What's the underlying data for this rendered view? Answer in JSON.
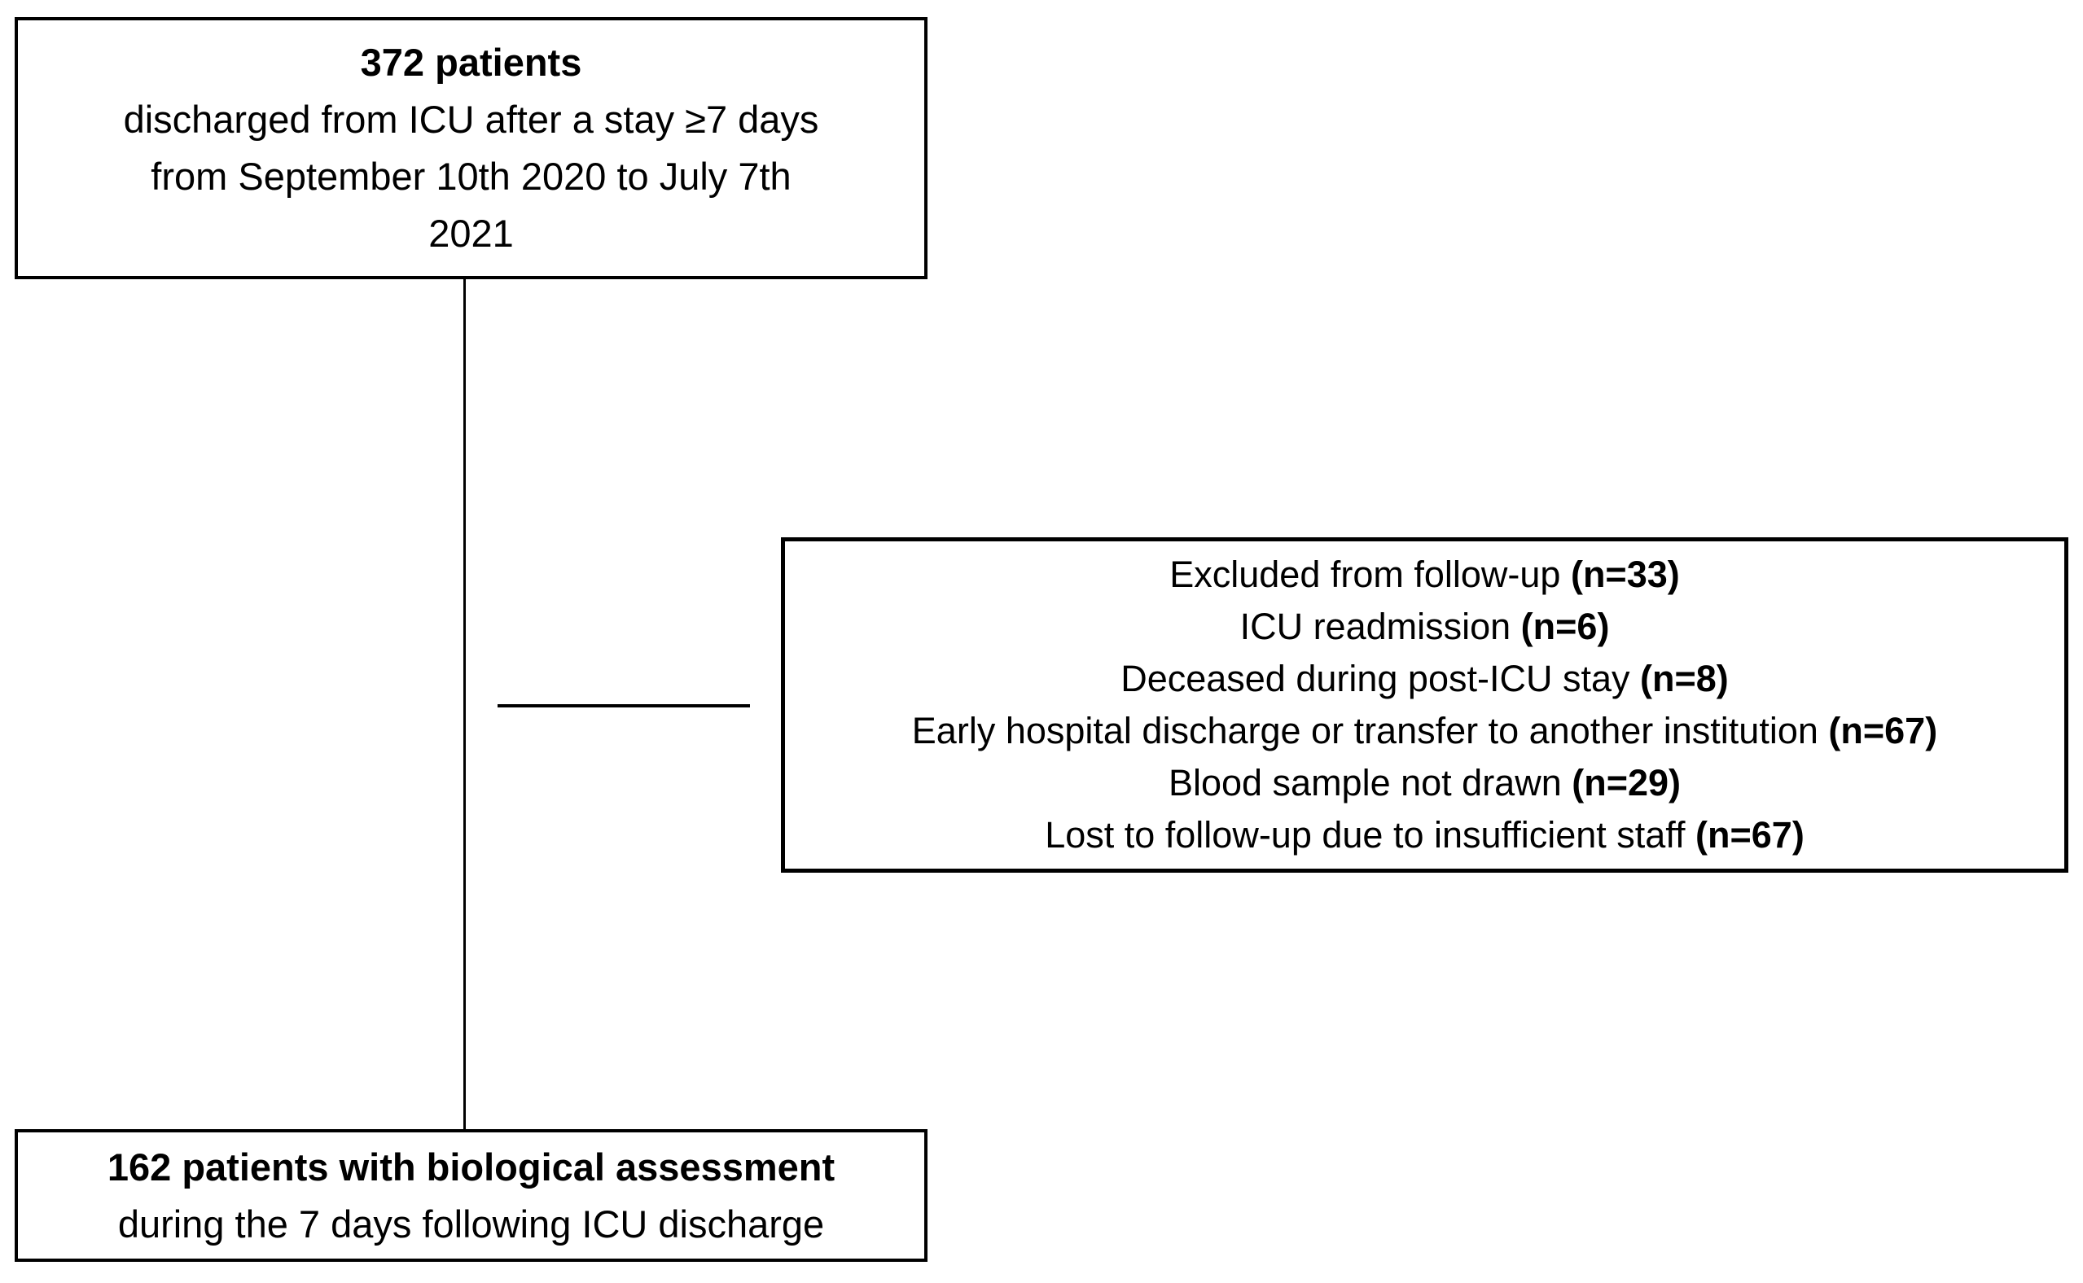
{
  "diagram": {
    "title_semantic": "patient-flow-diagram",
    "top_box": {
      "count_line": "372 patients",
      "lines": [
        "discharged from ICU after a stay ≥7 days",
        "from September 10th 2020 to July 7th",
        "2021"
      ]
    },
    "exclusion_box": {
      "items": [
        {
          "label": "Excluded from follow-up ",
          "count": "(n=33)"
        },
        {
          "label": "ICU readmission ",
          "count": "(n=6)"
        },
        {
          "label": "Deceased during post-ICU stay ",
          "count": "(n=8)"
        },
        {
          "label": "Early hospital discharge or transfer to another institution ",
          "count": "(n=67)"
        },
        {
          "label": "Blood sample not drawn ",
          "count": "(n=29)"
        },
        {
          "label": "Lost to follow-up due to insufficient staff ",
          "count": "(n=67)"
        }
      ]
    },
    "bottom_box": {
      "count_line": "162 patients with biological assessment",
      "desc_line": "during the 7 days following ICU discharge"
    },
    "colors": {
      "border": "#000000",
      "text": "#000000",
      "background": "#ffffff"
    }
  }
}
